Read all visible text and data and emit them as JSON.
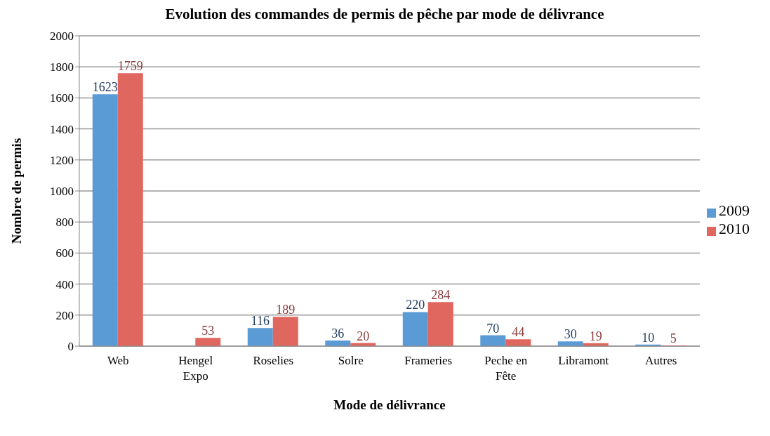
{
  "chart_data": {
    "type": "bar",
    "title": "Evolution des commandes de permis de pêche par mode de délivrance",
    "xlabel": "Mode de délivrance",
    "ylabel": "Nombre de permis",
    "categories": [
      "Web",
      "Hengel Expo",
      "Roselies",
      "Solre",
      "Frameries",
      "Peche en Fête",
      "Libramont",
      "Autres"
    ],
    "series": [
      {
        "name": "2009",
        "color": "#5b9bd5",
        "values": [
          1623,
          null,
          116,
          36,
          220,
          70,
          30,
          10
        ]
      },
      {
        "name": "2010",
        "color": "#e0675f",
        "values": [
          1759,
          53,
          189,
          20,
          284,
          44,
          19,
          5
        ]
      }
    ],
    "ylim": [
      0,
      2000
    ],
    "yticks": [
      0,
      200,
      400,
      600,
      800,
      1000,
      1200,
      1400,
      1600,
      1800,
      2000
    ],
    "grid": "y",
    "legend": "right",
    "data_labels": true
  }
}
